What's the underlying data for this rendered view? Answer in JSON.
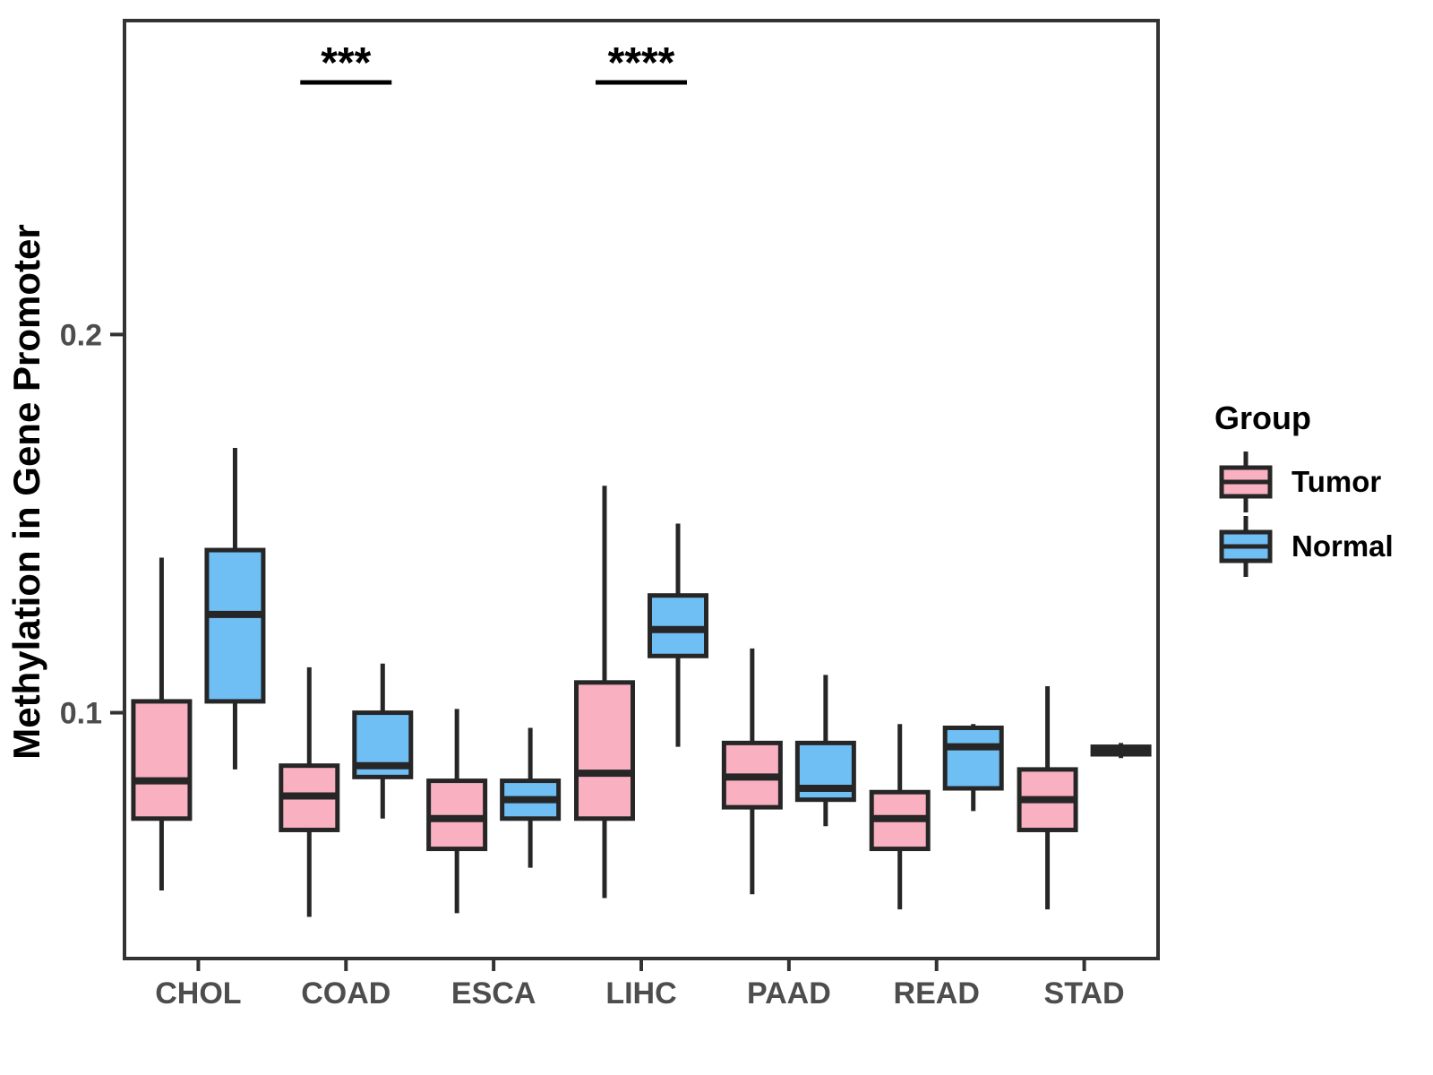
{
  "chart_data": {
    "type": "boxplot",
    "title": "",
    "xlabel": "",
    "ylabel": "Methylation in Gene Promoter",
    "categories": [
      "CHOL",
      "COAD",
      "ESCA",
      "LIHC",
      "PAAD",
      "READ",
      "STAD"
    ],
    "ylim": [
      0.035,
      0.283
    ],
    "yticks": [
      {
        "value": 0.1,
        "label": "0.1"
      },
      {
        "value": 0.2,
        "label": "0.2"
      }
    ],
    "grid": false,
    "series": [
      {
        "name": "Tumor",
        "color": "#F9B0C1",
        "boxes": [
          {
            "category": "CHOL",
            "low": 0.053,
            "q1": 0.072,
            "median": 0.082,
            "q3": 0.103,
            "high": 0.141
          },
          {
            "category": "COAD",
            "low": 0.046,
            "q1": 0.069,
            "median": 0.078,
            "q3": 0.086,
            "high": 0.112
          },
          {
            "category": "ESCA",
            "low": 0.047,
            "q1": 0.064,
            "median": 0.072,
            "q3": 0.082,
            "high": 0.101
          },
          {
            "category": "LIHC",
            "low": 0.051,
            "q1": 0.072,
            "median": 0.084,
            "q3": 0.108,
            "high": 0.16
          },
          {
            "category": "PAAD",
            "low": 0.052,
            "q1": 0.075,
            "median": 0.083,
            "q3": 0.092,
            "high": 0.117
          },
          {
            "category": "READ",
            "low": 0.048,
            "q1": 0.064,
            "median": 0.072,
            "q3": 0.079,
            "high": 0.097
          },
          {
            "category": "STAD",
            "low": 0.048,
            "q1": 0.069,
            "median": 0.077,
            "q3": 0.085,
            "high": 0.107
          }
        ]
      },
      {
        "name": "Normal",
        "color": "#6FBFF5",
        "boxes": [
          {
            "category": "CHOL",
            "low": 0.085,
            "q1": 0.103,
            "median": 0.126,
            "q3": 0.143,
            "high": 0.17
          },
          {
            "category": "COAD",
            "low": 0.072,
            "q1": 0.083,
            "median": 0.086,
            "q3": 0.1,
            "high": 0.113
          },
          {
            "category": "ESCA",
            "low": 0.059,
            "q1": 0.072,
            "median": 0.077,
            "q3": 0.082,
            "high": 0.096
          },
          {
            "category": "LIHC",
            "low": 0.091,
            "q1": 0.115,
            "median": 0.122,
            "q3": 0.131,
            "high": 0.15
          },
          {
            "category": "PAAD",
            "low": 0.07,
            "q1": 0.077,
            "median": 0.08,
            "q3": 0.092,
            "high": 0.11
          },
          {
            "category": "READ",
            "low": 0.074,
            "q1": 0.08,
            "median": 0.091,
            "q3": 0.096,
            "high": 0.097
          },
          {
            "category": "STAD",
            "low": 0.088,
            "q1": 0.089,
            "median": 0.09,
            "q3": 0.091,
            "high": 0.092
          }
        ]
      }
    ],
    "significance": [
      {
        "category": "COAD",
        "label": "***"
      },
      {
        "category": "LIHC",
        "label": "****"
      }
    ],
    "legend": {
      "title": "Group",
      "position": "right",
      "entries": [
        "Tumor",
        "Normal"
      ]
    },
    "colors": {
      "box_outline": "#262626",
      "panel_border": "#333333",
      "axis_text": "#4d4d4d",
      "significance": "#000000"
    }
  }
}
